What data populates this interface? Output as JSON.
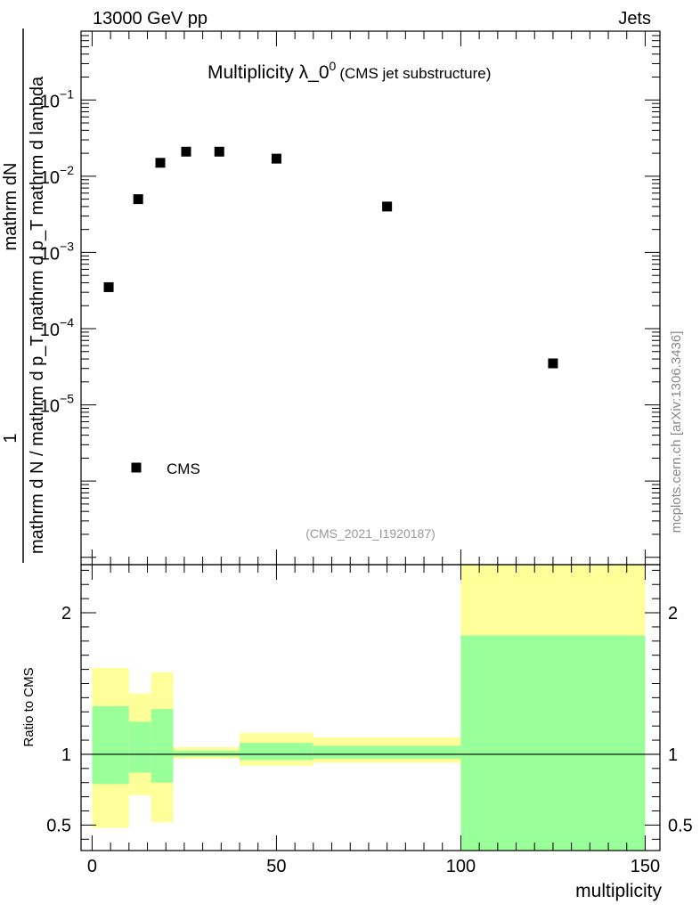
{
  "header": {
    "energy": "13000 GeV pp",
    "category": "Jets"
  },
  "chart_data": [
    {
      "type": "scatter",
      "title": "Multiplicity λ_0",
      "title_superscript": "0",
      "subtitle": "(CMS jet substructure)",
      "analysis_id": "(CMS_2021_I1920187)",
      "ylabel_numerator": "1",
      "ylabel_numerator_2": "mathrm dN",
      "ylabel_denominator": "mathrm d N / mathrm d p_T mathrm d p_T mathrm d lambda",
      "yscale": "log",
      "ylim": [
        8e-08,
        0.8
      ],
      "xlim": [
        -3,
        154
      ],
      "y_ticks": [
        {
          "base": "10",
          "exp": "−1",
          "v": 0.1
        },
        {
          "base": "10",
          "exp": "−2",
          "v": 0.01
        },
        {
          "base": "10",
          "exp": "−3",
          "v": 0.001
        },
        {
          "base": "10",
          "exp": "−4",
          "v": 0.0001
        },
        {
          "base": "10",
          "exp": "−5",
          "v": 1e-05
        }
      ],
      "series": [
        {
          "name": "CMS",
          "color": "#000000",
          "x": [
            4.5,
            12.5,
            18.5,
            25.5,
            34.5,
            50,
            80,
            125
          ],
          "y": [
            0.00035,
            0.005,
            0.015,
            0.021,
            0.021,
            0.017,
            0.004,
            3.5e-05
          ]
        }
      ],
      "legend": {
        "label": "CMS",
        "placement": "bottom-left"
      },
      "side_label": "mcplots.cern.ch [arXiv:1306.3436]"
    },
    {
      "type": "area",
      "ylabel": "Ratio to CMS",
      "xlabel": "multiplicity",
      "xlim": [
        -3,
        154
      ],
      "ylim": [
        0.32,
        2.34
      ],
      "x_ticks": [
        {
          "label": "0",
          "v": 0
        },
        {
          "label": "50",
          "v": 50
        },
        {
          "label": "100",
          "v": 100
        },
        {
          "label": "150",
          "v": 150
        }
      ],
      "y_ticks": [
        {
          "label": "0.5",
          "v": 0.5
        },
        {
          "label": "1",
          "v": 1
        },
        {
          "label": "2",
          "v": 2
        }
      ],
      "reference_line": 1,
      "bands": [
        {
          "x0": 0,
          "x1": 10,
          "yellow": [
            0.48,
            1.61
          ],
          "green": [
            0.79,
            1.34
          ]
        },
        {
          "x0": 10,
          "x1": 16,
          "yellow": [
            0.71,
            1.43
          ],
          "green": [
            0.87,
            1.23
          ]
        },
        {
          "x0": 16,
          "x1": 22,
          "yellow": [
            0.52,
            1.58
          ],
          "green": [
            0.8,
            1.32
          ]
        },
        {
          "x0": 22,
          "x1": 40,
          "yellow": [
            0.97,
            1.05
          ],
          "green": [
            0.985,
            1.025
          ]
        },
        {
          "x0": 40,
          "x1": 60,
          "yellow": [
            0.92,
            1.15
          ],
          "green": [
            0.96,
            1.08
          ]
        },
        {
          "x0": 60,
          "x1": 100,
          "yellow": [
            0.94,
            1.12
          ],
          "green": [
            0.97,
            1.06
          ]
        },
        {
          "x0": 100,
          "x1": 150,
          "yellow": [
            0.32,
            2.34
          ],
          "green": [
            0.32,
            1.84
          ]
        }
      ],
      "colors": {
        "yellow": "#ffff99",
        "green": "#99ff99"
      }
    }
  ]
}
